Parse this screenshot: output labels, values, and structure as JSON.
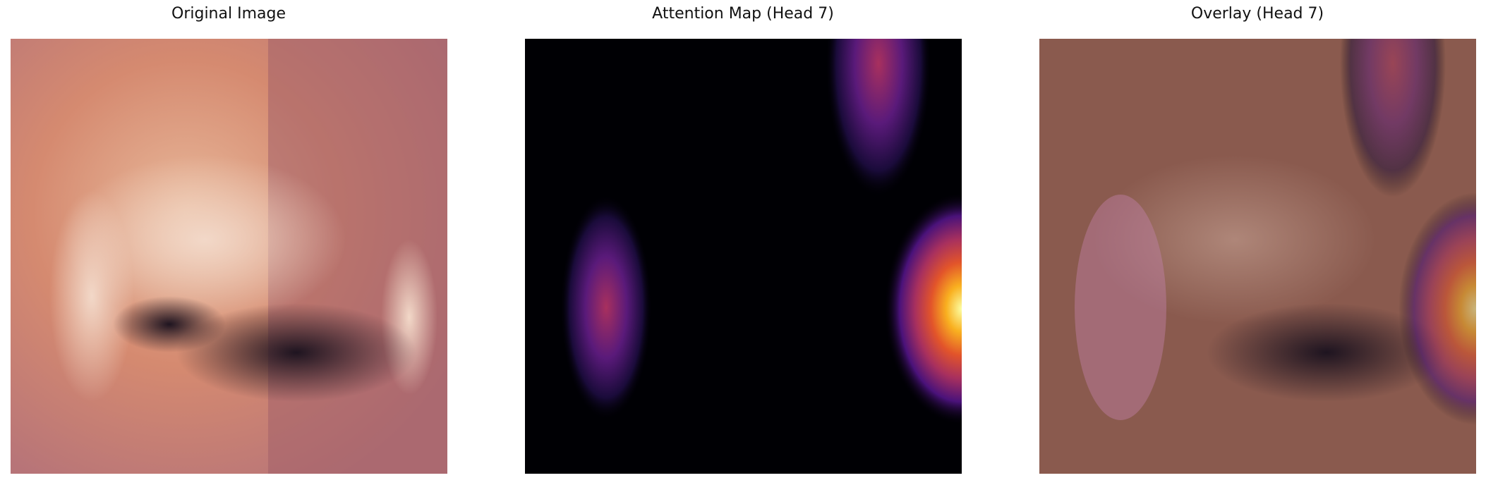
{
  "panels": [
    {
      "title": "Original Image"
    },
    {
      "title": "Attention Map (Head 7)"
    },
    {
      "title": "Overlay (Head 7)"
    }
  ]
}
